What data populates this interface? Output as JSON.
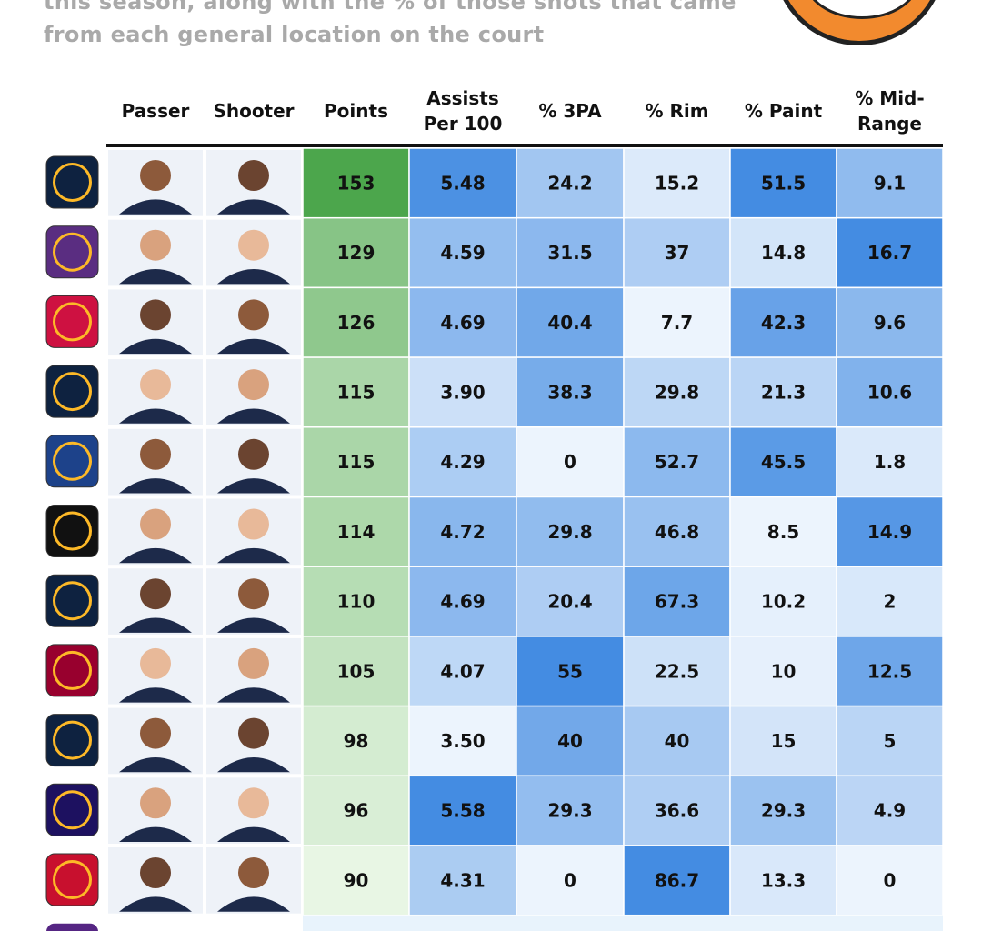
{
  "header": {
    "subtitle_lines": [
      "this season, along with the % of those shots that came",
      "from each general location on the court"
    ]
  },
  "table": {
    "columns": [
      "Passer",
      "Shooter",
      "Points",
      "Assists\nPer 100",
      "% 3PA",
      "% Rim",
      "% Paint",
      "% Mid-\nRange"
    ],
    "rows": [
      [
        "153",
        "5.48",
        "24.2",
        "15.2",
        "51.5",
        "9.1"
      ],
      [
        "129",
        "4.59",
        "31.5",
        "37",
        "14.8",
        "16.7"
      ],
      [
        "126",
        "4.69",
        "40.4",
        "7.7",
        "42.3",
        "9.6"
      ],
      [
        "115",
        "3.90",
        "38.3",
        "29.8",
        "21.3",
        "10.6"
      ],
      [
        "115",
        "4.29",
        "0",
        "52.7",
        "45.5",
        "1.8"
      ],
      [
        "114",
        "4.72",
        "29.8",
        "46.8",
        "8.5",
        "14.9"
      ],
      [
        "110",
        "4.69",
        "20.4",
        "67.3",
        "10.2",
        "2"
      ],
      [
        "105",
        "4.07",
        "55",
        "22.5",
        "10",
        "12.5"
      ],
      [
        "98",
        "3.50",
        "40",
        "40",
        "15",
        "5"
      ],
      [
        "96",
        "5.58",
        "29.3",
        "36.6",
        "29.3",
        "4.9"
      ],
      [
        "90",
        "4.31",
        "0",
        "86.7",
        "13.3",
        "0"
      ]
    ]
  }
}
